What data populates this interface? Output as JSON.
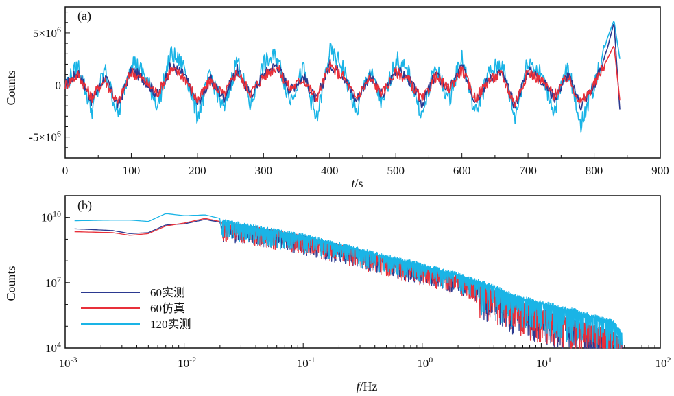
{
  "chart_data": [
    {
      "panel_label": "(a)",
      "type": "line",
      "xlabel_var": "t",
      "xlabel_unit": "/s",
      "ylabel": "Counts",
      "xlim": [
        0,
        900
      ],
      "ylim": [
        -7000000,
        7500000
      ],
      "x_ticks": [
        0,
        100,
        200,
        300,
        400,
        500,
        600,
        700,
        800,
        900
      ],
      "x_tick_labels": [
        "0",
        "100",
        "200",
        "300",
        "400",
        "500",
        "600",
        "700",
        "800",
        "900"
      ],
      "y_ticks": [
        {
          "value": 5000000,
          "mantissa": "5×10",
          "exp": "6"
        },
        {
          "value": 0,
          "mantissa": "0",
          "exp": ""
        },
        {
          "value": -5000000,
          "mantissa": "-5×10",
          "exp": "6"
        }
      ],
      "x": [
        0,
        20,
        40,
        60,
        80,
        100,
        120,
        140,
        160,
        180,
        200,
        220,
        240,
        260,
        280,
        300,
        320,
        340,
        360,
        380,
        400,
        420,
        440,
        460,
        480,
        500,
        520,
        540,
        560,
        580,
        600,
        620,
        640,
        660,
        680,
        700,
        720,
        740,
        760,
        780,
        800,
        820,
        830,
        840
      ],
      "series": [
        {
          "name": "60实测",
          "color": "#2b3990",
          "values": [
            0,
            1200000,
            -1500000,
            800000,
            -2000000,
            1500000,
            500000,
            -1000000,
            1800000,
            1000000,
            -1800000,
            500000,
            -1200000,
            1500000,
            -1000000,
            1000000,
            2000000,
            -500000,
            800000,
            -1500000,
            2000000,
            1000000,
            -1500000,
            800000,
            -1000000,
            1500000,
            500000,
            -1800000,
            1000000,
            -500000,
            1800000,
            -1500000,
            500000,
            1200000,
            -2000000,
            1500000,
            500000,
            -1200000,
            1000000,
            -2000000,
            0,
            3500000,
            6000000,
            -3500000
          ]
        },
        {
          "name": "60仿真",
          "color": "#e8303a",
          "values": [
            0,
            1000000,
            -1200000,
            500000,
            -1800000,
            1300000,
            400000,
            -800000,
            1500000,
            800000,
            -1500000,
            400000,
            -1000000,
            1300000,
            -800000,
            800000,
            1800000,
            -400000,
            600000,
            -1300000,
            1800000,
            800000,
            -1300000,
            600000,
            -800000,
            1300000,
            400000,
            -1500000,
            800000,
            -400000,
            1500000,
            -1300000,
            400000,
            1000000,
            -1800000,
            1300000,
            400000,
            -1000000,
            800000,
            -1800000,
            0,
            2500000,
            3800000,
            -2200000
          ]
        },
        {
          "name": "120实测",
          "color": "#1ab4e6",
          "values": [
            0,
            1800000,
            -2500000,
            1500000,
            -3000000,
            2500000,
            1000000,
            -2000000,
            3000000,
            1800000,
            -3000000,
            1000000,
            -2500000,
            2500000,
            -2000000,
            2000000,
            2800000,
            -1500000,
            1500000,
            -3500000,
            3200000,
            1800000,
            -2800000,
            1500000,
            -2000000,
            2500000,
            1000000,
            -3000000,
            1800000,
            -1500000,
            2800000,
            -2800000,
            1000000,
            2200000,
            -3200000,
            2500000,
            1000000,
            -2500000,
            1800000,
            -3800000,
            0,
            4500000,
            6200000,
            2000000
          ]
        }
      ]
    },
    {
      "panel_label": "(b)",
      "type": "line",
      "xlabel_var": "f",
      "xlabel_unit": "/Hz",
      "ylabel": "Counts",
      "xscale": "log",
      "yscale": "log",
      "xlim": [
        0.001,
        100
      ],
      "ylim": [
        10000,
        100000000000
      ],
      "x_ticks": [
        {
          "value": 0.001,
          "base": "10",
          "exp": "-3"
        },
        {
          "value": 0.01,
          "base": "10",
          "exp": "-2"
        },
        {
          "value": 0.1,
          "base": "10",
          "exp": "-1"
        },
        {
          "value": 1,
          "base": "10",
          "exp": "0"
        },
        {
          "value": 10,
          "base": "10",
          "exp": "1"
        },
        {
          "value": 100,
          "base": "10",
          "exp": "2"
        }
      ],
      "y_ticks": [
        {
          "value": 10000,
          "base": "10",
          "exp": "4"
        },
        {
          "value": 10000000,
          "base": "10",
          "exp": "7"
        },
        {
          "value": 10000000000,
          "base": "10",
          "exp": "10"
        }
      ],
      "x": [
        0.0012,
        0.0025,
        0.0035,
        0.005,
        0.007,
        0.01,
        0.015,
        0.02,
        0.03,
        0.05,
        0.1,
        0.2,
        0.5,
        1,
        2,
        4,
        6,
        10,
        20,
        40,
        48
      ],
      "series": [
        {
          "name": "60实测",
          "color": "#2b3990",
          "values": [
            3000000000,
            2500000000,
            1800000000,
            2000000000,
            4500000000,
            5000000000,
            8000000000,
            6000000000,
            5000000000,
            3000000000,
            1500000000,
            600000000,
            150000000,
            60000000,
            20000000,
            5000000,
            1500000,
            600000,
            200000,
            60000,
            20000
          ]
        },
        {
          "name": "60仿真",
          "color": "#e8303a",
          "values": [
            2200000000,
            2000000000,
            1500000000,
            1800000000,
            4000000000,
            5500000000,
            9000000000,
            6500000000,
            5000000000,
            3000000000,
            1500000000,
            600000000,
            150000000,
            60000000,
            20000000,
            5000000,
            1500000,
            600000,
            200000,
            60000,
            20000
          ]
        },
        {
          "name": "120实测",
          "color": "#1ab4e6",
          "values": [
            7000000000,
            7500000000,
            7500000000,
            6500000000,
            15000000000,
            12000000000,
            13000000000,
            9000000000,
            6000000000,
            3500000000,
            1800000000,
            700000000,
            200000000,
            80000000,
            30000000,
            8000000,
            3000000,
            1500000,
            600000,
            200000,
            60000
          ]
        }
      ],
      "legend_position": "bottom-left"
    }
  ]
}
